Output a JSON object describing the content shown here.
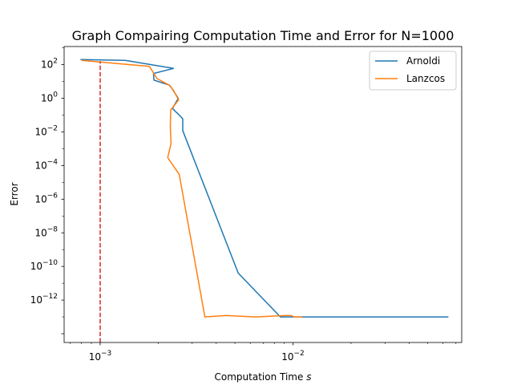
{
  "chart_data": {
    "type": "line",
    "title": "Graph Compairing Computation Time and Error for N=1000",
    "xlabel": "Computation Time s",
    "ylabel": "Error",
    "xscale": "log",
    "yscale": "log",
    "xlim": [
      0.00065,
      0.075
    ],
    "ylim": [
      3e-15,
      1200
    ],
    "grid": false,
    "legend": "top-right",
    "x_ticks": [
      {
        "value": 0.001,
        "base": "10",
        "exp": "−3"
      },
      {
        "value": 0.01,
        "base": "10",
        "exp": "−2"
      }
    ],
    "y_ticks": [
      {
        "value": 100,
        "base": "10",
        "exp": "2"
      },
      {
        "value": 1,
        "base": "10",
        "exp": "0"
      },
      {
        "value": 0.01,
        "base": "10",
        "exp": "−2"
      },
      {
        "value": 0.0001,
        "base": "10",
        "exp": "−4"
      },
      {
        "value": 1e-06,
        "base": "10",
        "exp": "−6"
      },
      {
        "value": 1e-08,
        "base": "10",
        "exp": "−8"
      },
      {
        "value": 1e-10,
        "base": "10",
        "exp": "−10"
      },
      {
        "value": 1e-12,
        "base": "10",
        "exp": "−12"
      }
    ],
    "reference_line": {
      "x": 0.001,
      "color": "#d62728",
      "style": "dashed"
    },
    "series": [
      {
        "name": "Arnoldi",
        "color": "#1f77b4",
        "points": [
          [
            0.00079,
            200
          ],
          [
            0.00135,
            180
          ],
          [
            0.0024,
            60
          ],
          [
            0.00189,
            30
          ],
          [
            0.0019,
            12
          ],
          [
            0.00229,
            6
          ],
          [
            0.00239,
            3
          ],
          [
            0.00254,
            1
          ],
          [
            0.00237,
            0.25
          ],
          [
            0.00262,
            0.08
          ],
          [
            0.00268,
            0.06
          ],
          [
            0.00268,
            0.012
          ],
          [
            0.0052,
            4e-11
          ],
          [
            0.0086,
            1e-13
          ],
          [
            0.0108,
            1e-13
          ],
          [
            0.064,
            1e-13
          ]
        ]
      },
      {
        "name": "Lanzcos",
        "color": "#ff7f0e",
        "points": [
          [
            0.0008,
            180
          ],
          [
            0.0018,
            80
          ],
          [
            0.00197,
            15
          ],
          [
            0.00228,
            6
          ],
          [
            0.0024,
            3
          ],
          [
            0.00255,
            0.8
          ],
          [
            0.00232,
            0.2
          ],
          [
            0.00231,
            0.02
          ],
          [
            0.00233,
            0.002
          ],
          [
            0.00224,
            0.0003
          ],
          [
            0.00257,
            3e-05
          ],
          [
            0.00349,
            1e-13
          ],
          [
            0.0045,
            1.2e-13
          ],
          [
            0.0064,
            1e-13
          ],
          [
            0.0091,
            1.2e-13
          ],
          [
            0.0098,
            1.2e-13
          ],
          [
            0.0101,
            1e-13
          ],
          [
            0.0112,
            1e-13
          ]
        ]
      }
    ]
  }
}
